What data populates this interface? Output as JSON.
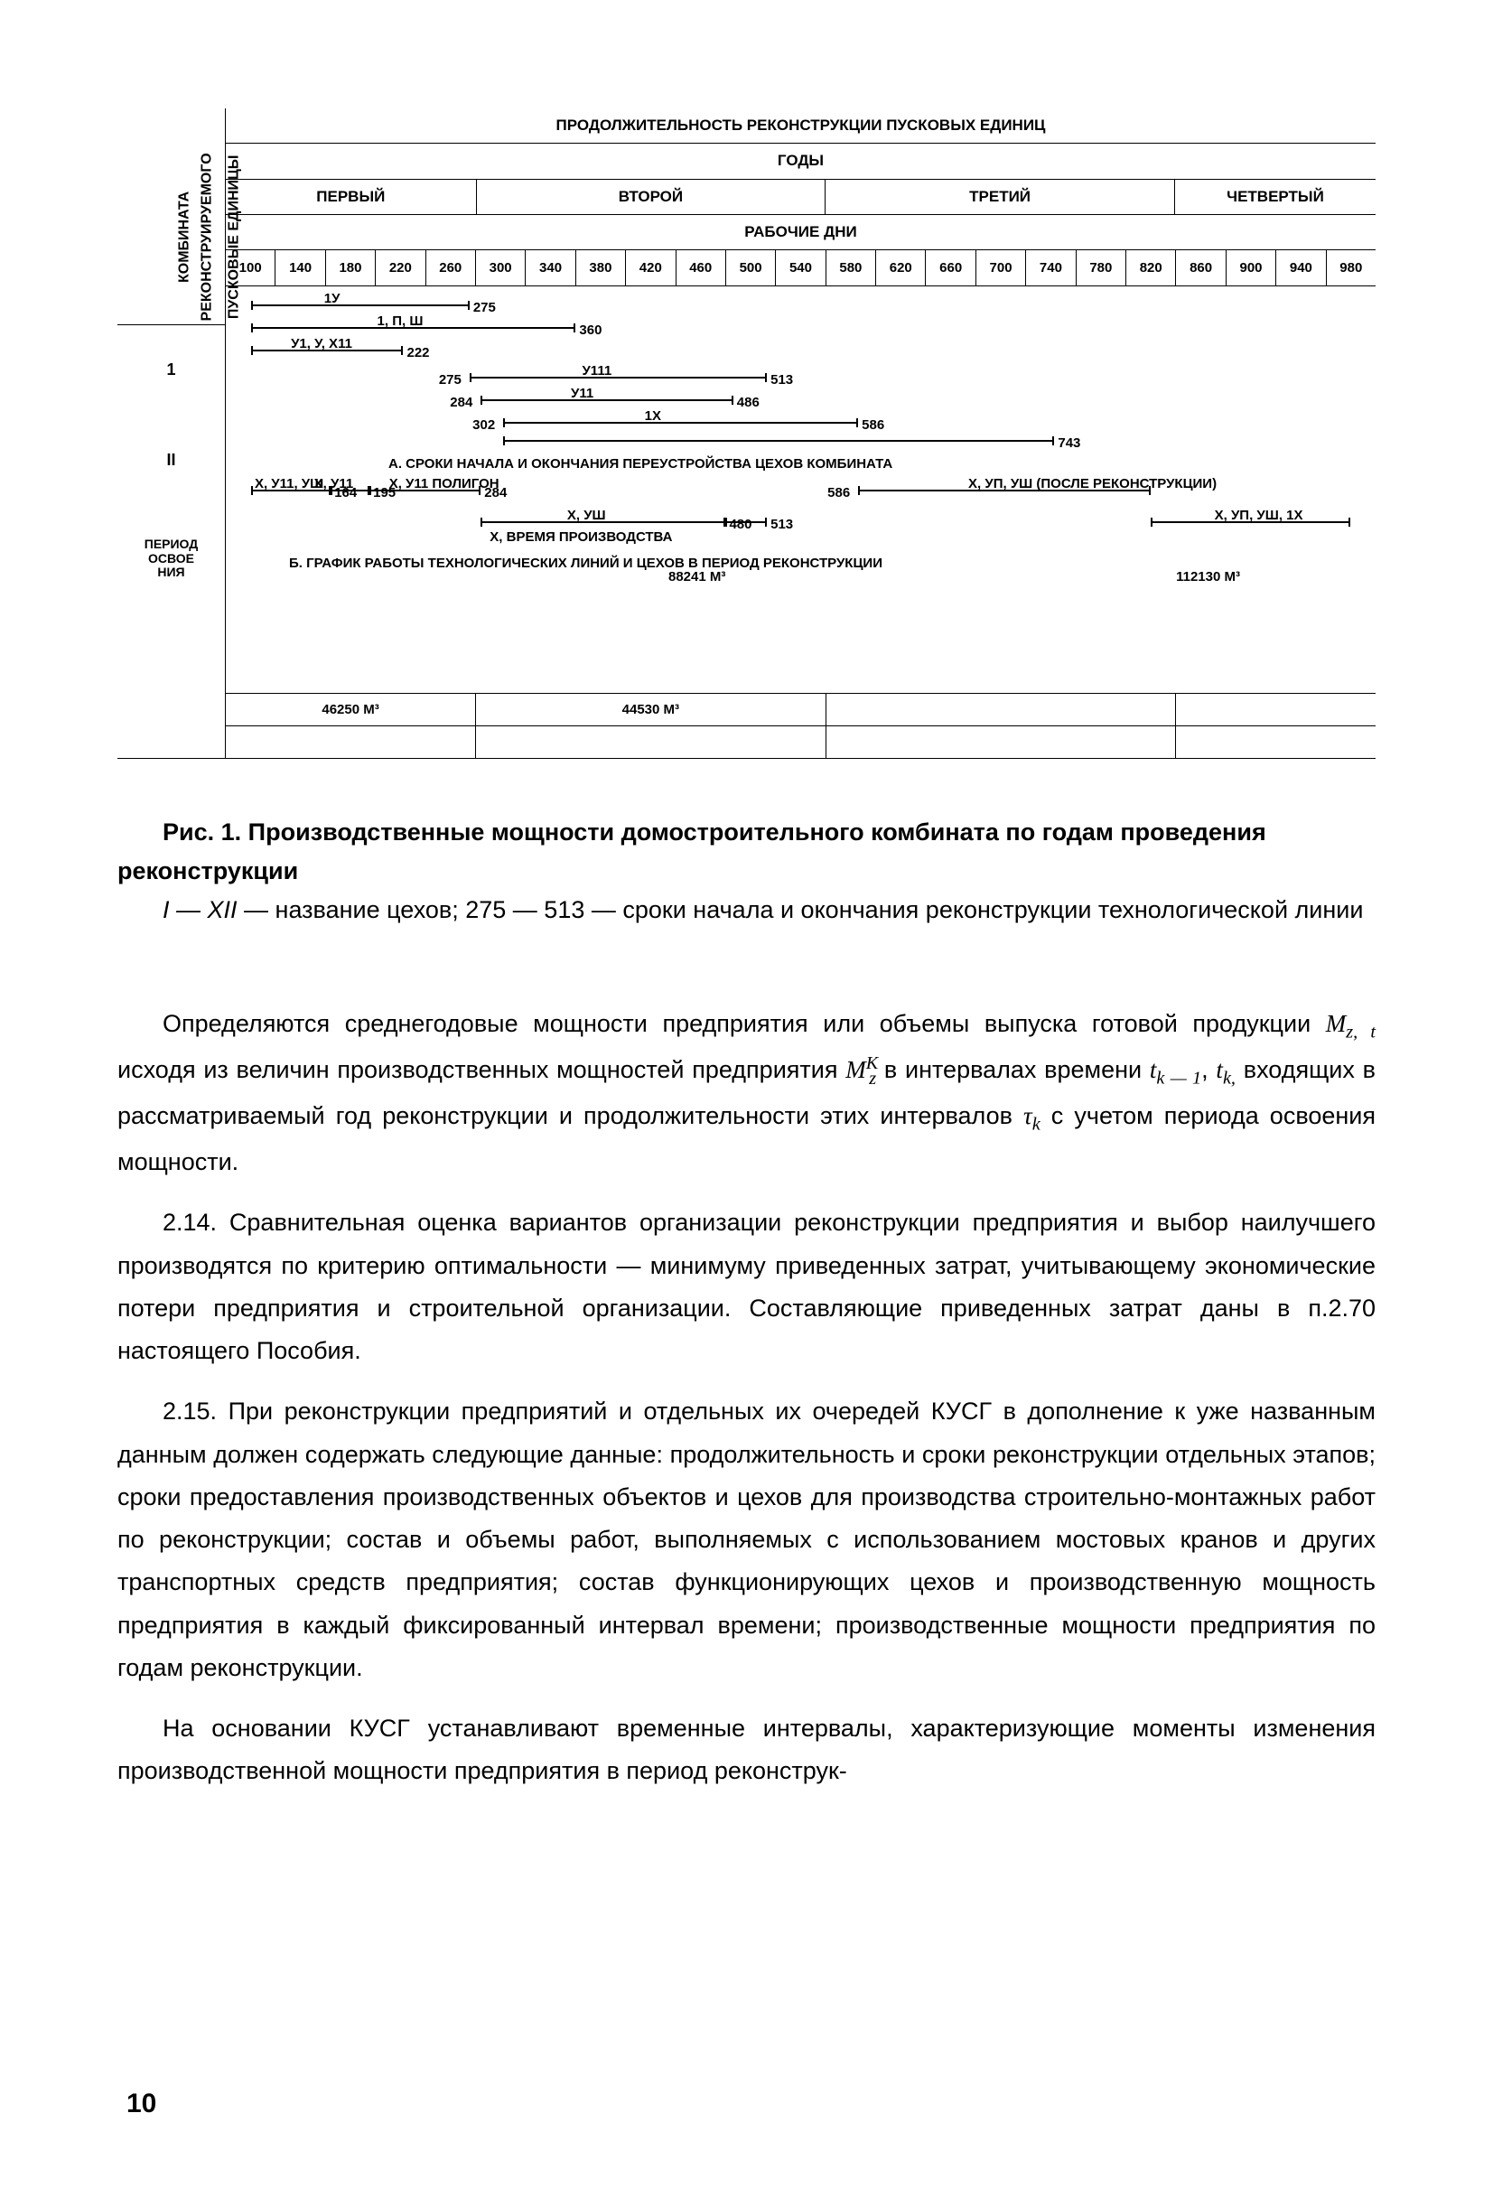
{
  "chart": {
    "left_label_1": "ПУСКОВЫЕ ЕДИНИЦЫ",
    "left_label_2": "РЕКОНСТРУИРУЕМОГО",
    "left_label_3": "КОМБИНАТА",
    "row_labels": {
      "r1": "1",
      "r2": "II",
      "osv": "ПЕРИОД\nОСВОЕ\nНИЯ"
    },
    "header_title": "ПРОДОЛЖИТЕЛЬНОСТЬ РЕКОНСТРУКЦИИ ПУСКОВЫХ ЕДИНИЦ",
    "years_title": "ГОДЫ",
    "years": {
      "y1": "ПЕРВЫЙ",
      "y2": "ВТОРОЙ",
      "y3": "ТРЕТИЙ",
      "y4": "ЧЕТВЕРТЫЙ"
    },
    "workdays_title": "РАБОЧИЕ ДНИ",
    "ticks": {
      "t1": "100",
      "t2": "140",
      "t3": "180",
      "t4": "220",
      "t5": "260",
      "t6": "300",
      "t7": "340",
      "t8": "380",
      "t9": "420",
      "t10": "460",
      "t11": "500",
      "t12": "540",
      "t13": "580",
      "t14": "620",
      "t15": "660",
      "t16": "700",
      "t17": "740",
      "t18": "780",
      "t19": "820",
      "t20": "860",
      "t21": "900",
      "t22": "940",
      "t23": "980"
    },
    "section_a": "А. СРОКИ НАЧАЛА И ОКОНЧАНИЯ ПЕРЕУСТРОЙСТВА ЦЕХОВ КОМБИНАТА",
    "section_b": "Б. ГРАФИК РАБОТЫ ТЕХНОЛОГИЧЕСКИХ ЛИНИЙ И ЦЕХОВ В ПЕРИОД РЕКОНСТРУКЦИИ",
    "bars": {
      "a1": {
        "label": "1У",
        "start": 100,
        "end": 275,
        "endlabel": "275"
      },
      "a2": {
        "label": "1, П, Ш",
        "start": 100,
        "end": 360,
        "endlabel": "360"
      },
      "a3": {
        "label": "У1, У, X11",
        "start": 100,
        "end": 222,
        "endlabel": "222"
      },
      "a4": {
        "label": "У111",
        "start": 275,
        "end": 513,
        "endlabel": "513",
        "startlabel": "275"
      },
      "a5": {
        "label": "У11",
        "start": 284,
        "end": 486,
        "endlabel": "486",
        "startlabel": "284"
      },
      "a6": {
        "label": "1X",
        "start": 302,
        "end": 586,
        "endlabel": "586",
        "startlabel": "302"
      },
      "a7": {
        "start": 302,
        "end": 743,
        "endlabel": "743"
      },
      "b1": {
        "label": "X, У11, УШ",
        "start": 100,
        "end": 164,
        "endlabel": "164"
      },
      "b2": {
        "label": "X, У11",
        "start": 164,
        "end": 195,
        "endlabel": "195"
      },
      "b3": {
        "label": "X, У11  ПОЛИГОН",
        "start": 195,
        "end": 284,
        "endlabel": "284"
      },
      "b4": {
        "label": "X, УШ",
        "start": 284,
        "end": 480,
        "sub": "X, ВРЕМЯ ПРОИЗВОДСТВА",
        "endlabel": "480"
      },
      "b5": {
        "start": 480,
        "end": 513,
        "endlabel": "513"
      },
      "b6": {
        "label": "X, УП, УШ  (ПОСЛЕ РЕКОНСТРУКЦИИ)",
        "start": 586,
        "end": 820,
        "startlabel": "586"
      },
      "b7": {
        "label": "X, УП, УШ, 1X",
        "start": 820,
        "end": 980
      }
    },
    "outputs": {
      "o1": "46250 М³",
      "o2": "44530 М³",
      "o3": "88241 М³",
      "o4": "112130 М³"
    }
  },
  "caption": {
    "fig": "Рис. 1.",
    "title": "Производственные мощности домостроительного комбината по годам проведения реконструкции",
    "line2_a": "I — XII",
    "line2_b": " — название цехов; 275 — 513 — сроки начала и  окончания   реконструкции технологической линии"
  },
  "paragraphs": {
    "p1_a": "Определяются среднегодовые мощности предприятия или объемы выпуска готовой продукции ",
    "p1_M1": "M",
    "p1_M1s": "z, t",
    "p1_b": " исходя из величин производственных мощностей предприятия ",
    "p1_M2": "M",
    "p1_M2sup": "K",
    "p1_M2sub": "z",
    "p1_c": " в интервалах времени ",
    "p1_t1": "t",
    "p1_t1s": "k  —  1",
    "p1_c2": ", ",
    "p1_t2": "t",
    "p1_t2s": "k,",
    "p1_d": " входящих в рассматриваемый год реконструкции  и  продолжительности этих интервалов ",
    "p1_tau": "τ",
    "p1_taus": "k",
    "p1_e": "  с учетом периода освоения мощности.",
    "p2_num": "2.14.",
    "p2": " Сравнительная оценка вариантов организации реконструкции предприятия и выбор наилучшего производятся по критерию оптимальности — минимуму приведенных затрат, учитывающему экономические потери предприятия и строительной организации.  Составляющие  приведенных   затрат    даны      в  п.2.70  настоящего Пособия.",
    "p3_num": "2.15.",
    "p3": " При реконструкции предприятий и отдельных их очередей КУСГ в дополнение к уже названным данным должен содержать следующие данные: продолжительность и сроки реконструкции отдельных этапов; сроки предоставления производственных объектов и цехов для производства строительно-монтажных работ по реконструкции;  состав и объемы работ, выполняемых с использованием мостовых кранов и других транспортных средств предприятия;  состав функционирующих цехов и производственную мощность предприятия в каждый фиксированный интервал времени;   производственные мощности предприятия по годам реконструкции.",
    "p4": "На основании КУСГ устанавливают временные интервалы, характеризующие моменты изменения производственной мощности предприятия в период реконструк-"
  },
  "page": "10"
}
